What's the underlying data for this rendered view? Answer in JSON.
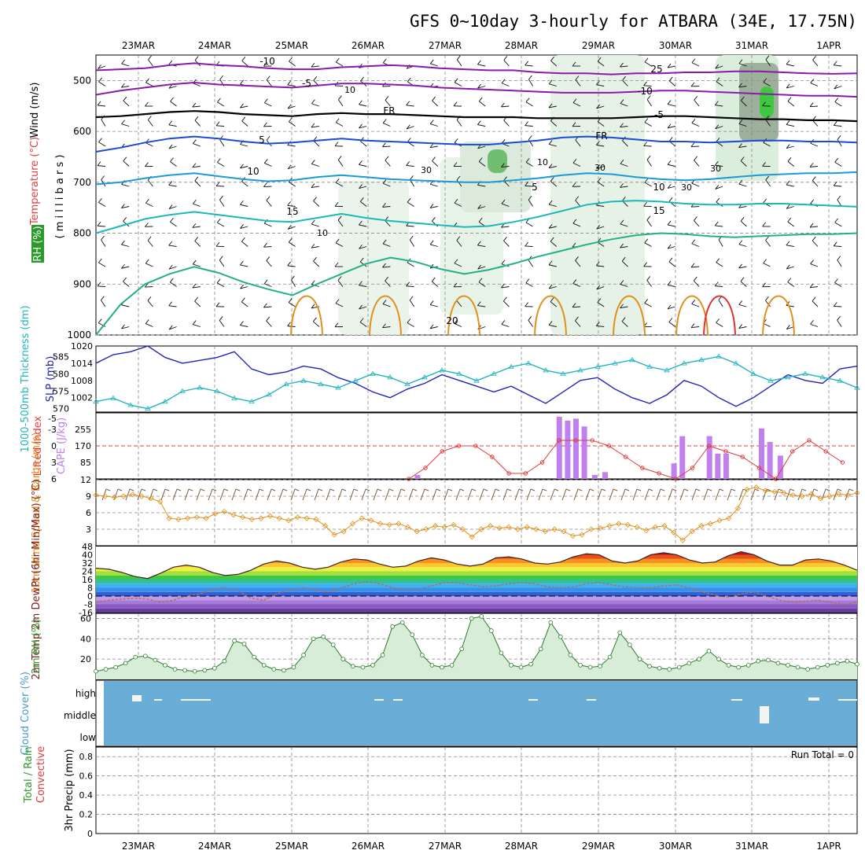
{
  "title": "GFS 0~10day 3-hourly for ATBARA (34E, 17.75N)",
  "colors": {
    "wind": "#000000",
    "temperature": "#e04040",
    "rh": "#2a9a2a",
    "slp": "#2222bb",
    "thickness": "#22b5c0",
    "lifted": "#e03a3a",
    "cape": "#c080f0",
    "wind10": "#e0901a",
    "temp2m": "#802020",
    "rh2m": "#2ea02e",
    "cloud": "#6aaed8",
    "rain": "#2a9a2a",
    "convective": "#e03a3a"
  },
  "chart_data": [
    {
      "type": "line",
      "panel": "upper-air",
      "xlabels_top": [
        "23MAR",
        "24MAR",
        "25MAR",
        "26MAR",
        "27MAR",
        "28MAR",
        "29MAR",
        "30MAR",
        "31MAR",
        "1APR"
      ],
      "ylabel_parts": [
        "Wind (m/s)",
        "Temperature (°C)",
        "RH (%)"
      ],
      "ylabel_unit": "( m i l l i b a r s )",
      "yticks": [
        500,
        600,
        700,
        800,
        900,
        1000
      ],
      "ylim": [
        450,
        1000
      ],
      "isotherm_labels": [
        "-10",
        "-5",
        "FR",
        "5",
        "10",
        "15",
        "20",
        "25",
        "-10",
        "-5",
        "FR",
        "5",
        "10",
        "15"
      ],
      "rh_labels": [
        "10",
        "30",
        "10",
        "30",
        "30",
        "30",
        "10"
      ],
      "series": [
        {
          "name": "-10",
          "color": "#8a1aa8",
          "values": [
            480,
            478,
            476,
            470,
            466,
            470,
            472,
            476,
            478,
            478,
            474,
            472,
            470,
            472,
            476,
            478,
            480,
            480,
            484,
            486,
            486,
            488,
            486,
            486,
            484,
            484,
            482,
            482,
            484,
            486,
            487,
            486
          ]
        },
        {
          "name": "-5",
          "color": "#8a1aa8",
          "values": [
            528,
            520,
            514,
            508,
            504,
            508,
            510,
            512,
            514,
            510,
            506,
            506,
            508,
            510,
            514,
            516,
            518,
            520,
            522,
            524,
            524,
            524,
            522,
            520,
            520,
            522,
            524,
            526,
            528,
            530,
            530,
            532
          ]
        },
        {
          "name": "FR",
          "color": "#000000",
          "values": [
            572,
            570,
            566,
            562,
            560,
            562,
            566,
            568,
            570,
            566,
            564,
            566,
            566,
            568,
            570,
            572,
            572,
            572,
            574,
            574,
            574,
            574,
            572,
            570,
            570,
            572,
            574,
            576,
            576,
            578,
            578,
            580
          ]
        },
        {
          "name": "5",
          "color": "#1a4ad8",
          "values": [
            640,
            632,
            622,
            614,
            610,
            614,
            620,
            624,
            622,
            618,
            614,
            618,
            620,
            622,
            624,
            626,
            626,
            622,
            618,
            612,
            610,
            612,
            616,
            620,
            620,
            622,
            620,
            618,
            618,
            620,
            620,
            622
          ]
        },
        {
          "name": "10",
          "color": "#1a9ad8",
          "values": [
            704,
            700,
            692,
            686,
            682,
            688,
            694,
            698,
            696,
            690,
            686,
            690,
            694,
            696,
            698,
            700,
            700,
            696,
            692,
            686,
            682,
            684,
            690,
            694,
            696,
            694,
            690,
            686,
            684,
            682,
            682,
            680
          ]
        },
        {
          "name": "15",
          "color": "#1ab8b8",
          "values": [
            800,
            786,
            772,
            764,
            758,
            764,
            770,
            776,
            778,
            770,
            762,
            770,
            776,
            780,
            784,
            788,
            786,
            778,
            768,
            756,
            744,
            738,
            736,
            738,
            742,
            744,
            744,
            742,
            742,
            744,
            746,
            748
          ]
        },
        {
          "name": "20",
          "color": "#22b088",
          "values": [
            1000,
            940,
            900,
            880,
            866,
            878,
            896,
            910,
            922,
            900,
            880,
            860,
            848,
            856,
            870,
            880,
            872,
            860,
            846,
            834,
            822,
            812,
            804,
            800,
            802,
            806,
            808,
            806,
            804,
            802,
            802,
            800
          ]
        }
      ]
    },
    {
      "type": "line",
      "panel": "slp-thickness",
      "ylabel_slp": "SLP (mb)",
      "ylabel_thickness": "1000-500mb Thickness (dm)",
      "yticks_slp": [
        1002,
        1008,
        1014,
        1020
      ],
      "yticks_thickness": [
        570,
        575,
        580,
        585
      ],
      "ylim_slp": [
        997,
        1020
      ],
      "series": [
        {
          "name": "SLP",
          "color": "#2222bb",
          "values": [
            1014,
            1017,
            1018,
            1020,
            1016,
            1014,
            1015,
            1016,
            1018,
            1012,
            1010,
            1011,
            1013,
            1012,
            1009,
            1007,
            1004,
            1002,
            1005,
            1007,
            1010,
            1008,
            1006,
            1004,
            1006,
            1003,
            1000,
            1004,
            1008,
            1009,
            1005,
            1002,
            1000,
            1003,
            1008,
            1006,
            1002,
            999,
            1002,
            1006,
            1010,
            1008,
            1007,
            1012,
            1013
          ]
        },
        {
          "name": "Thickness",
          "color": "#22b5c0",
          "values": [
            572,
            573,
            571,
            570,
            572,
            575,
            576,
            575,
            573,
            572,
            574,
            577,
            578,
            577,
            576,
            578,
            580,
            579,
            577,
            579,
            581,
            580,
            578,
            580,
            582,
            583,
            581,
            580,
            581,
            582,
            583,
            584,
            582,
            581,
            583,
            584,
            585,
            583,
            580,
            578,
            579,
            580,
            579,
            578,
            576
          ]
        }
      ]
    },
    {
      "type": "bar",
      "panel": "lifted-cape",
      "ylabel_lifted": "Lifted Index",
      "ylabel_cape": "CAPE (J/kg)",
      "yticks_lifted": [
        6,
        3,
        0,
        -3,
        -5
      ],
      "yticks_cape": [
        85,
        170,
        255
      ],
      "ylim_cape": [
        0,
        340
      ],
      "cape_x": [
        15.4,
        22.2,
        22.6,
        23.0,
        23.4,
        23.9,
        24.4,
        27.4,
        27.7,
        28.1,
        29.4,
        29.8,
        30.2,
        31.9,
        32.3,
        32.8
      ],
      "cape_values": [
        20,
        320,
        300,
        310,
        270,
        20,
        35,
        0,
        80,
        220,
        220,
        130,
        130,
        260,
        190,
        120
      ],
      "lifted_x": [
        15.0,
        15.8,
        16.6,
        17.4,
        18.2,
        19.0,
        19.8,
        20.6,
        21.4,
        22.2,
        23.0,
        23.8,
        24.6,
        25.4,
        26.2,
        27.0,
        27.8,
        28.6,
        29.4,
        30.2,
        31.0,
        31.8,
        32.6,
        33.4,
        34.2,
        35.0,
        35.8
      ],
      "lifted_values": [
        6,
        4,
        1,
        0,
        0,
        2,
        5,
        5,
        3,
        -1,
        -1,
        -1,
        0,
        2,
        4,
        5,
        6,
        4,
        0,
        1,
        2,
        4,
        6,
        1,
        -1,
        1,
        3
      ]
    },
    {
      "type": "line",
      "panel": "wind10m",
      "ylabel": "10m Wind Speed & Barbs (m/s)",
      "yticks": [
        3,
        6,
        9,
        12
      ],
      "ylim": [
        0,
        12
      ],
      "series": [
        {
          "name": "Speed",
          "color": "#e0901a",
          "values": [
            9.2,
            9.0,
            8.8,
            9.0,
            9.3,
            9.0,
            8.6,
            8.0,
            5.0,
            4.8,
            5.0,
            5.2,
            5.0,
            5.8,
            6.2,
            5.6,
            5.2,
            4.8,
            5.0,
            5.4,
            5.0,
            4.6,
            5.2,
            5.0,
            4.8,
            3.6,
            2.0,
            2.6,
            4.0,
            5.0,
            4.6,
            4.0,
            3.8,
            4.0,
            3.4,
            2.6,
            3.0,
            3.6,
            3.4,
            3.8,
            3.0,
            1.6,
            3.0,
            3.6,
            3.2,
            3.4,
            3.0,
            3.4,
            3.0,
            2.6,
            3.0,
            2.6,
            1.8,
            2.0,
            3.0,
            3.2,
            3.6,
            4.0,
            3.8,
            3.4,
            2.8,
            3.4,
            3.6,
            2.4,
            1.0,
            2.6,
            3.6,
            4.0,
            4.6,
            5.0,
            6.8,
            10.2,
            10.6,
            10.0,
            9.8,
            9.6,
            9.2,
            9.0,
            9.4,
            8.6,
            9.0,
            9.4,
            9.2,
            9.6
          ]
        }
      ]
    },
    {
      "type": "area",
      "panel": "temp2m",
      "ylabel": "2m Temp 2m DewPt (6hr Min/Max) (°C)",
      "yticks": [
        -16,
        -8,
        0,
        8,
        16,
        24,
        32,
        40,
        48
      ],
      "ylim": [
        -16,
        48
      ],
      "series": [
        {
          "name": "Temp",
          "color": "#402020",
          "values": [
            27,
            26,
            23,
            19,
            17,
            22,
            28,
            30,
            28,
            23,
            20,
            21,
            25,
            31,
            34,
            32,
            28,
            26,
            28,
            33,
            36,
            35,
            31,
            28,
            29,
            34,
            37,
            35,
            31,
            29,
            31,
            37,
            38,
            36,
            32,
            31,
            33,
            38,
            41,
            40,
            34,
            32,
            34,
            40,
            42,
            40,
            35,
            32,
            33,
            39,
            43,
            40,
            34,
            30,
            30,
            35,
            36,
            34,
            30,
            25
          ]
        },
        {
          "name": "DewPt",
          "color": "#b07050",
          "values": [
            -6,
            -4,
            -3,
            -2,
            -3,
            -6,
            -4,
            0,
            2,
            6,
            8,
            5,
            -2,
            -4,
            2,
            6,
            8,
            6,
            4,
            8,
            12,
            14,
            12,
            8,
            6,
            6,
            10,
            13,
            13,
            11,
            9,
            10,
            12,
            13,
            12,
            9,
            8,
            9,
            12,
            13,
            11,
            9,
            8,
            8,
            10,
            11,
            8,
            4,
            1,
            -1,
            2,
            4,
            0,
            -4,
            -6,
            -5,
            -4,
            -6,
            -8,
            -6
          ]
        }
      ]
    },
    {
      "type": "area",
      "panel": "rh2m",
      "ylabel": "2m RH (%)",
      "yticks": [
        20,
        40,
        60
      ],
      "ylim": [
        0,
        65
      ],
      "series": [
        {
          "name": "RH",
          "color": "#2ea02e",
          "values": [
            8,
            10,
            12,
            16,
            22,
            23,
            19,
            14,
            10,
            9,
            8,
            9,
            11,
            18,
            38,
            35,
            22,
            14,
            10,
            9,
            12,
            24,
            40,
            42,
            34,
            20,
            13,
            12,
            14,
            24,
            52,
            56,
            44,
            24,
            14,
            12,
            14,
            30,
            60,
            62,
            48,
            26,
            14,
            12,
            15,
            30,
            56,
            42,
            24,
            14,
            12,
            13,
            22,
            46,
            34,
            20,
            13,
            11,
            10,
            12,
            16,
            20,
            28,
            20,
            14,
            12,
            14,
            18,
            19,
            16,
            14,
            12,
            10,
            12,
            14,
            16,
            18,
            15
          ]
        }
      ]
    },
    {
      "type": "bar",
      "panel": "cloud",
      "ylabel": "Cloud Cover (%)",
      "levels": [
        "high",
        "middle",
        "low"
      ]
    },
    {
      "type": "bar",
      "panel": "precip",
      "ylabel_parts": [
        "Total / Rain",
        "Convective",
        "3hr Precip (mm)"
      ],
      "yticks": [
        "0",
        "0.2",
        "0.4",
        "0.6",
        "0.8"
      ],
      "ylim": [
        0,
        0.9
      ],
      "run_total": "Run Total = 0",
      "xlabels_bottom": [
        "23MAR",
        "24MAR",
        "25MAR",
        "26MAR",
        "27MAR",
        "28MAR",
        "29MAR",
        "30MAR",
        "31MAR",
        "1APR"
      ]
    }
  ]
}
